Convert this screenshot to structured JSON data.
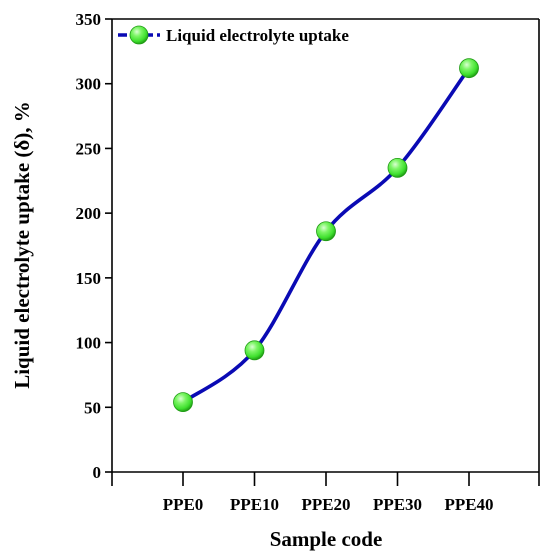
{
  "chart_data": {
    "type": "line",
    "title": "",
    "xlabel": "Sample code",
    "ylabel": "Liquid electrolyte uptake (δ), %",
    "categories": [
      "PPE0",
      "PPE10",
      "PPE20",
      "PPE30",
      "PPE40"
    ],
    "series": [
      {
        "name": "Liquid electrolyte uptake",
        "values": [
          54,
          94,
          186,
          235,
          312
        ]
      }
    ],
    "ylim": [
      0,
      350
    ],
    "yticks": [
      "0",
      "50",
      "100",
      "150",
      "200",
      "250",
      "300",
      "350"
    ],
    "grid": false,
    "legend": "top-left",
    "colors": {
      "line": "#0a0ab4",
      "marker": "#3fe02e",
      "marker_highlight": "#d9ffd2",
      "marker_dark": "#1f9a14",
      "axis": "#000000"
    }
  }
}
